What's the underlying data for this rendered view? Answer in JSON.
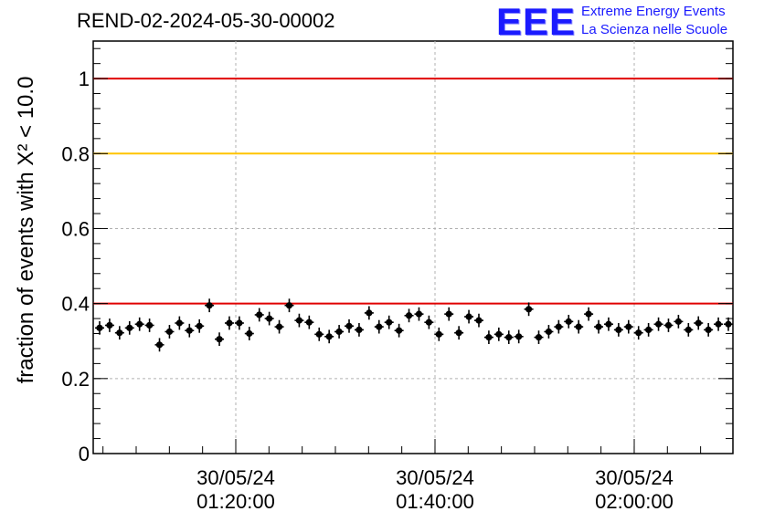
{
  "title": "REND-02-2024-05-30-00002",
  "logo": {
    "mark": "EEE",
    "line1": "Extreme Energy Events",
    "line2": "La Scienza nelle Scuole"
  },
  "colors": {
    "limit_red": "#e00000",
    "limit_yellow": "#ffc400",
    "points": "#000000",
    "grid": "#b0b0b0"
  },
  "chart_data": {
    "type": "scatter",
    "title": "REND-02-2024-05-30-00002",
    "ylabel": "fraction of events with X² < 10.0",
    "ylim": [
      0,
      1.1
    ],
    "yticks": [
      0,
      0.2,
      0.4,
      0.6,
      0.8,
      1
    ],
    "ytick_labels": [
      "0",
      "0.2",
      "0.4",
      "0.6",
      "0.8",
      "1"
    ],
    "xtick_labels": [
      [
        "30/05/24",
        "01:20:00"
      ],
      [
        "30/05/24",
        "01:40:00"
      ],
      [
        "30/05/24",
        "02:00:00"
      ]
    ],
    "grid": true,
    "reference_lines": [
      {
        "y": 1.0,
        "color": "red"
      },
      {
        "y": 0.8,
        "color": "yellow"
      },
      {
        "y": 0.4,
        "color": "red"
      }
    ],
    "series": [
      {
        "values": [
          0.335,
          0.342,
          0.322,
          0.335,
          0.345,
          0.342,
          0.29,
          0.325,
          0.348,
          0.328,
          0.34,
          0.395,
          0.305,
          0.348,
          0.348,
          0.32,
          0.37,
          0.36,
          0.338,
          0.395,
          0.355,
          0.35,
          0.318,
          0.312,
          0.325,
          0.34,
          0.33,
          0.375,
          0.338,
          0.35,
          0.328,
          0.368,
          0.372,
          0.35,
          0.318,
          0.372,
          0.322,
          0.365,
          0.355,
          0.31,
          0.318,
          0.31,
          0.312,
          0.385,
          0.31,
          0.325,
          0.338,
          0.352,
          0.338,
          0.372,
          0.338,
          0.345,
          0.33,
          0.338,
          0.322,
          0.33,
          0.345,
          0.342,
          0.352,
          0.33,
          0.348,
          0.33,
          0.345,
          0.345
        ]
      }
    ]
  }
}
